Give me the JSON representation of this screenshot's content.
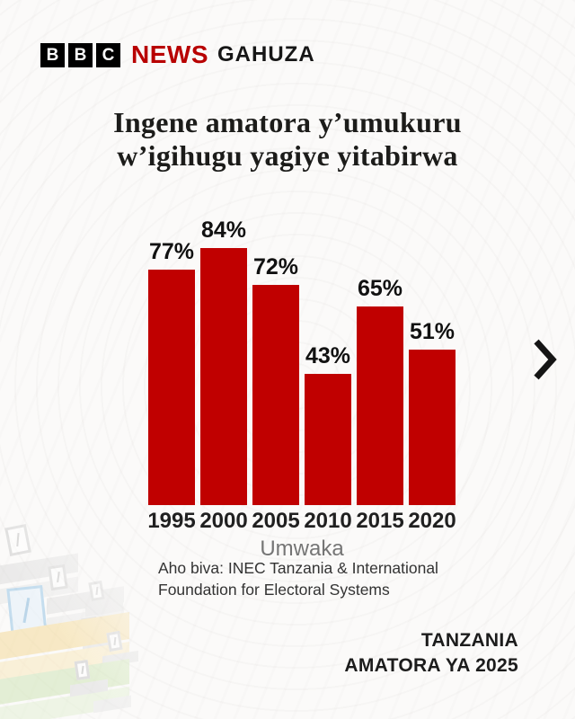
{
  "header": {
    "logo_blocks": [
      "B",
      "B",
      "C"
    ],
    "news_label": "NEWS",
    "service_label": "GAHUZA"
  },
  "title": {
    "lines": [
      "Ingene amatora y’umukuru",
      "w’igihugu yagiye yitabirwa"
    ]
  },
  "chart_data": {
    "type": "bar",
    "categories": [
      "1995",
      "2000",
      "2005",
      "2010",
      "2015",
      "2020"
    ],
    "values": [
      77,
      84,
      72,
      43,
      65,
      51
    ],
    "value_suffix": "%",
    "title": "",
    "xlabel": "Umwaka",
    "ylabel": "",
    "ylim": [
      0,
      100
    ],
    "grid": false,
    "legend": false,
    "bar_color": "#c00000",
    "value_labels_position": "above"
  },
  "source": {
    "label_lines": [
      "Aho biva: INEC Tanzania & International",
      "Foundation for Electoral Systems"
    ]
  },
  "footer": {
    "lines": [
      "TANZANIA",
      "AMATORA YA 2025"
    ]
  },
  "icons": {
    "next": "chevron-right",
    "decor": "ballot-boxes-illustration"
  },
  "colors": {
    "bbc_news_red": "#b80000",
    "bar_red": "#c00000",
    "text_dark": "#1a1a1a",
    "muted_gray": "#757575",
    "background": "#fbfaf9"
  }
}
